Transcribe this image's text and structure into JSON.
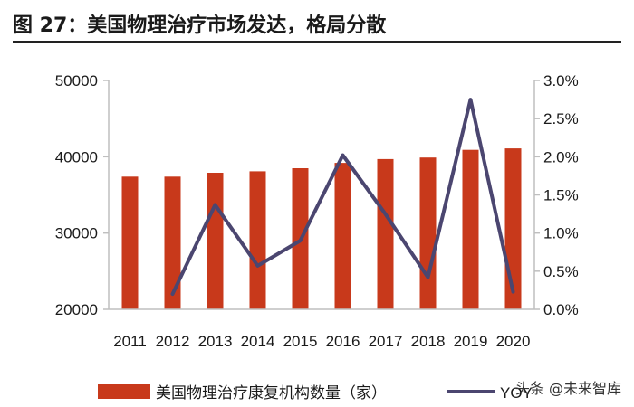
{
  "header": {
    "title": "图 27：美国物理治疗市场发达，格局分散"
  },
  "watermark": "头条 @未来智库",
  "colors": {
    "bar": "#C8391B",
    "line": "#4B4670",
    "axis": "#BFBFBF",
    "text": "#1a1a1a"
  },
  "chart_data": {
    "type": "bar",
    "categories": [
      "2011",
      "2012",
      "2013",
      "2014",
      "2015",
      "2016",
      "2017",
      "2018",
      "2019",
      "2020"
    ],
    "series": [
      {
        "name": "美国物理治疗康复机构数量（家）",
        "type": "bar",
        "axis": "left",
        "values": [
          37400,
          37400,
          37900,
          38100,
          38500,
          39200,
          39700,
          39900,
          40900,
          41100
        ]
      },
      {
        "name": "YOY",
        "type": "line",
        "axis": "right",
        "values": [
          null,
          0.002,
          0.0137,
          0.0057,
          0.009,
          0.0202,
          0.0125,
          0.0042,
          0.0275,
          0.0023
        ]
      }
    ],
    "y_left": {
      "lim": [
        20000,
        50000
      ],
      "ticks": [
        "20000",
        "30000",
        "40000",
        "50000"
      ]
    },
    "y_right": {
      "lim": [
        0,
        0.03
      ],
      "ticks": [
        "0.0%",
        "0.5%",
        "1.0%",
        "1.5%",
        "2.0%",
        "2.5%",
        "3.0%"
      ]
    },
    "grid": false,
    "legend_position": "bottom"
  }
}
